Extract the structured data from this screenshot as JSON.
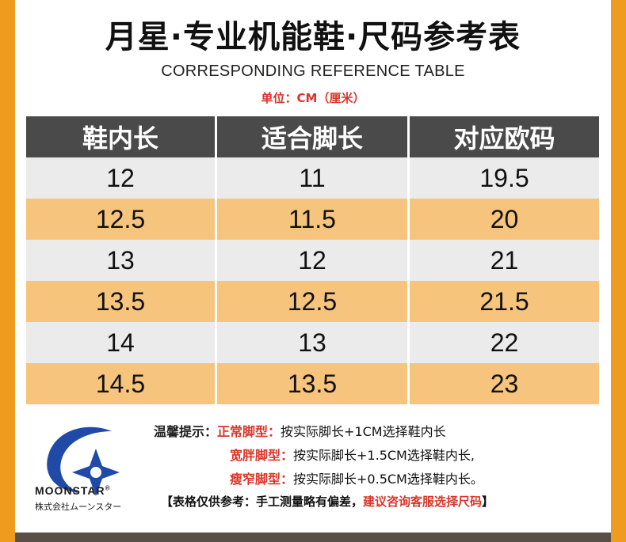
{
  "title": "月星·专业机能鞋·尺码参考表",
  "subtitle": "CORRESPONDING REFERENCE TABLE",
  "unit": "单位：CM（厘米）",
  "table": {
    "headers": [
      "鞋内长",
      "适合脚长",
      "对应欧码"
    ],
    "rows": [
      [
        "12",
        "11",
        "19.5"
      ],
      [
        "12.5",
        "11.5",
        "20"
      ],
      [
        "13",
        "12",
        "21"
      ],
      [
        "13.5",
        "12.5",
        "21.5"
      ],
      [
        "14",
        "13",
        "22"
      ],
      [
        "14.5",
        "13.5",
        "23"
      ]
    ]
  },
  "brand": {
    "name": "MOONSTAR",
    "reg": "®",
    "sub": "株式会社ムーンスター"
  },
  "tips": {
    "label": "温馨提示：",
    "items": [
      {
        "type": "正常脚型：",
        "text": "按实际脚长+1CM选择鞋内长"
      },
      {
        "type": "宽胖脚型：",
        "text": "按实际脚长+1.5CM选择鞋内长,"
      },
      {
        "type": "瘦窄脚型：",
        "text": "按实际脚长+0.5CM选择鞋内长。"
      }
    ]
  },
  "note": {
    "dark": "【表格仅供参考：手工测量略有偏差，",
    "red": "建议咨询客服选择尺码",
    "end": "】"
  },
  "colors": {
    "frame": "#ee9b1e",
    "header": "#4a4a4a",
    "row_light": "#ebebeb",
    "row_orange": "#f6c47c",
    "accent_red": "#d9352a",
    "logo_blue": "#1f4aa8"
  }
}
